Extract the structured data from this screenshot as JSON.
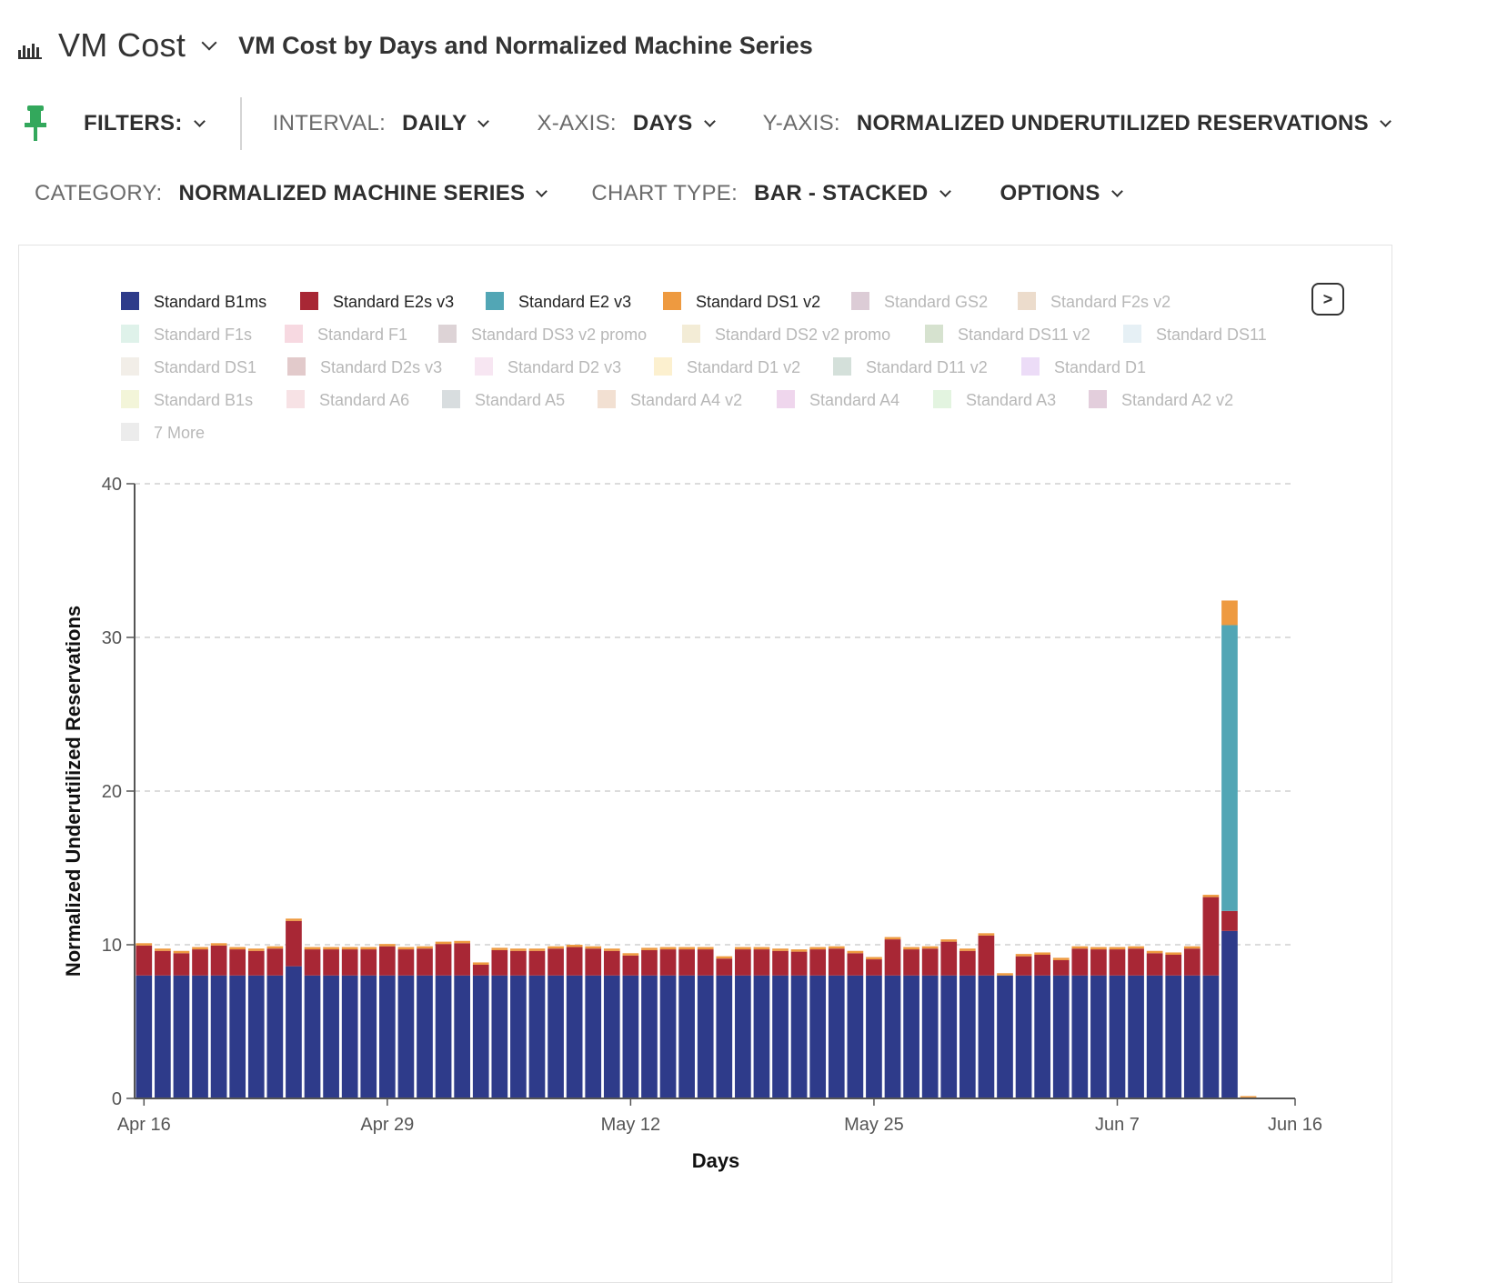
{
  "header": {
    "app_title": "VM Cost",
    "report_title": "VM Cost by Days and Normalized Machine Series"
  },
  "toolbar": {
    "filters_label": "FILTERS:",
    "interval_label": "INTERVAL:",
    "interval_value": "DAILY",
    "xaxis_label": "X-AXIS:",
    "xaxis_value": "DAYS",
    "yaxis_label": "Y-AXIS:",
    "yaxis_value": "NORMALIZED UNDERUTILIZED RESERVATIONS",
    "category_label": "CATEGORY:",
    "category_value": "NORMALIZED MACHINE SERIES",
    "charttype_label": "CHART TYPE:",
    "charttype_value": "BAR - STACKED",
    "options_label": "OPTIONS"
  },
  "legend_next": ">",
  "legend": [
    {
      "name": "Standard B1ms",
      "color": "#2e3b8a",
      "active": true
    },
    {
      "name": "Standard E2s v3",
      "color": "#a82735",
      "active": true
    },
    {
      "name": "Standard E2 v3",
      "color": "#52a6b5",
      "active": true
    },
    {
      "name": "Standard DS1 v2",
      "color": "#ee9a40",
      "active": true
    },
    {
      "name": "Standard GS2",
      "color": "#dcccd6",
      "active": false
    },
    {
      "name": "Standard F2s v2",
      "color": "#ecdccc",
      "active": false
    },
    {
      "name": "Standard F1s",
      "color": "#dff2ea",
      "active": false
    },
    {
      "name": "Standard F1",
      "color": "#f7d9e1",
      "active": false
    },
    {
      "name": "Standard DS3 v2 promo",
      "color": "#ddd3d6",
      "active": false
    },
    {
      "name": "Standard DS2 v2 promo",
      "color": "#f3ecd6",
      "active": false
    },
    {
      "name": "Standard DS11 v2",
      "color": "#d6e2cf",
      "active": false
    },
    {
      "name": "Standard DS11",
      "color": "#e6f0f5",
      "active": false
    },
    {
      "name": "Standard DS1",
      "color": "#f2eee8",
      "active": false
    },
    {
      "name": "Standard D2s v3",
      "color": "#e2cacb",
      "active": false
    },
    {
      "name": "Standard D2 v3",
      "color": "#f7e6f2",
      "active": false
    },
    {
      "name": "Standard D1 v2",
      "color": "#fcf0cf",
      "active": false
    },
    {
      "name": "Standard D11 v2",
      "color": "#d4e0da",
      "active": false
    },
    {
      "name": "Standard D1",
      "color": "#ecdcf7",
      "active": false
    },
    {
      "name": "Standard B1s",
      "color": "#f3f5d9",
      "active": false
    },
    {
      "name": "Standard A6",
      "color": "#f7e2e5",
      "active": false
    },
    {
      "name": "Standard A5",
      "color": "#d8dddf",
      "active": false
    },
    {
      "name": "Standard A4 v2",
      "color": "#f2e0d2",
      "active": false
    },
    {
      "name": "Standard A4",
      "color": "#efd6ed",
      "active": false
    },
    {
      "name": "Standard A3",
      "color": "#e3f4e0",
      "active": false
    },
    {
      "name": "Standard A2 v2",
      "color": "#e3cedc",
      "active": false
    },
    {
      "name": "7 More",
      "color": "#ececec",
      "active": false
    }
  ],
  "chart_data": {
    "type": "bar",
    "stacked": true,
    "xlabel": "Days",
    "ylabel": "Normalized Underutilized Reservations",
    "ylim": [
      0,
      40
    ],
    "yticks": [
      0,
      10,
      20,
      30,
      40
    ],
    "xticks": [
      "Apr 16",
      "Apr 29",
      "May 12",
      "May 25",
      "Jun 7",
      "Jun 16"
    ],
    "start_date": "Apr 16",
    "categories": [
      "Apr 16",
      "Apr 17",
      "Apr 18",
      "Apr 19",
      "Apr 20",
      "Apr 21",
      "Apr 22",
      "Apr 23",
      "Apr 24",
      "Apr 25",
      "Apr 26",
      "Apr 27",
      "Apr 28",
      "Apr 29",
      "Apr 30",
      "May 1",
      "May 2",
      "May 3",
      "May 4",
      "May 5",
      "May 6",
      "May 7",
      "May 8",
      "May 9",
      "May 10",
      "May 11",
      "May 12",
      "May 13",
      "May 14",
      "May 15",
      "May 16",
      "May 17",
      "May 18",
      "May 19",
      "May 20",
      "May 21",
      "May 22",
      "May 23",
      "May 24",
      "May 25",
      "May 26",
      "May 27",
      "May 28",
      "May 29",
      "May 30",
      "May 31",
      "Jun 1",
      "Jun 2",
      "Jun 3",
      "Jun 4",
      "Jun 5",
      "Jun 6",
      "Jun 7",
      "Jun 8",
      "Jun 9",
      "Jun 10",
      "Jun 11",
      "Jun 12",
      "Jun 13",
      "Jun 14",
      "Jun 15",
      "Jun 16"
    ],
    "series": [
      {
        "name": "Standard B1ms",
        "values": [
          8,
          8,
          8,
          8,
          8,
          8,
          8,
          8,
          8.6,
          8,
          8,
          8,
          8,
          8,
          8,
          8,
          8,
          8,
          8,
          8,
          8,
          8,
          8,
          8,
          8,
          8,
          8,
          8,
          8,
          8,
          8,
          8,
          8,
          8,
          8,
          8,
          8,
          8,
          8,
          8,
          8,
          8,
          8,
          8,
          8,
          8,
          8,
          8,
          8,
          8,
          8,
          8,
          8,
          8,
          8,
          8,
          8,
          8,
          10.9,
          0,
          0,
          0
        ]
      },
      {
        "name": "Standard E2s v3",
        "values": [
          1.95,
          1.6,
          1.45,
          1.7,
          1.95,
          1.7,
          1.6,
          1.75,
          2.95,
          1.7,
          1.7,
          1.7,
          1.7,
          1.9,
          1.7,
          1.75,
          2.05,
          2.1,
          0.7,
          1.65,
          1.6,
          1.6,
          1.75,
          1.85,
          1.75,
          1.6,
          1.3,
          1.65,
          1.7,
          1.7,
          1.7,
          1.1,
          1.7,
          1.7,
          1.6,
          1.55,
          1.7,
          1.75,
          1.45,
          1.05,
          2.35,
          1.7,
          1.75,
          2.2,
          1.6,
          2.6,
          0,
          1.25,
          1.35,
          1.0,
          1.75,
          1.7,
          1.7,
          1.75,
          1.45,
          1.35,
          1.75,
          5.1,
          1.3,
          0,
          0,
          0
        ]
      },
      {
        "name": "Standard E2 v3",
        "values": [
          0,
          0,
          0,
          0,
          0,
          0,
          0,
          0,
          0,
          0,
          0,
          0,
          0,
          0,
          0,
          0,
          0,
          0,
          0,
          0,
          0,
          0,
          0,
          0,
          0,
          0,
          0,
          0,
          0,
          0,
          0,
          0,
          0,
          0,
          0,
          0,
          0,
          0,
          0,
          0,
          0,
          0,
          0,
          0,
          0,
          0,
          0,
          0,
          0,
          0,
          0,
          0,
          0,
          0,
          0,
          0,
          0,
          0,
          18.6,
          0,
          0,
          0
        ]
      },
      {
        "name": "Standard DS1 v2",
        "values": [
          0.15,
          0.15,
          0.15,
          0.15,
          0.15,
          0.15,
          0.15,
          0.15,
          0.15,
          0.15,
          0.15,
          0.15,
          0.15,
          0.15,
          0.15,
          0.15,
          0.15,
          0.15,
          0.15,
          0.15,
          0.15,
          0.15,
          0.15,
          0.15,
          0.15,
          0.15,
          0.15,
          0.15,
          0.15,
          0.15,
          0.15,
          0.15,
          0.15,
          0.15,
          0.15,
          0.15,
          0.15,
          0.15,
          0.15,
          0.15,
          0.15,
          0.15,
          0.15,
          0.15,
          0.15,
          0.15,
          0.15,
          0.15,
          0.15,
          0.15,
          0.15,
          0.15,
          0.15,
          0.15,
          0.15,
          0.15,
          0.15,
          0.15,
          1.6,
          0.15,
          0.05,
          0.05
        ]
      }
    ]
  }
}
